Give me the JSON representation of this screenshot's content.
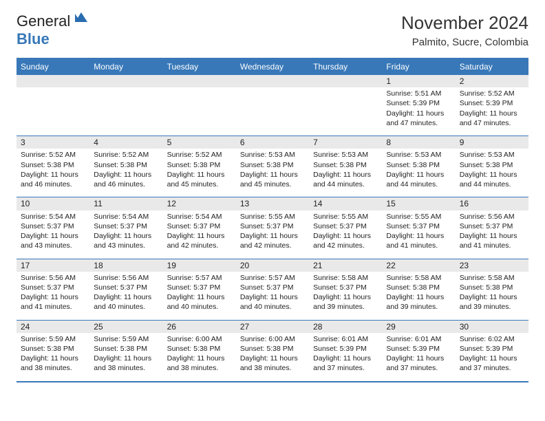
{
  "logo": {
    "part1": "General",
    "part2": "Blue"
  },
  "title": "November 2024",
  "location": "Palmito, Sucre, Colombia",
  "colors": {
    "header_bg": "#3878b8",
    "header_text": "#ffffff",
    "border": "#3878b8",
    "daybar_bg": "#e9e9ea",
    "text": "#222222",
    "logo_blue": "#3878b8"
  },
  "day_headers": [
    "Sunday",
    "Monday",
    "Tuesday",
    "Wednesday",
    "Thursday",
    "Friday",
    "Saturday"
  ],
  "weeks": [
    [
      null,
      null,
      null,
      null,
      null,
      {
        "n": "1",
        "sr": "Sunrise: 5:51 AM",
        "ss": "Sunset: 5:39 PM",
        "dl": "Daylight: 11 hours and 47 minutes."
      },
      {
        "n": "2",
        "sr": "Sunrise: 5:52 AM",
        "ss": "Sunset: 5:39 PM",
        "dl": "Daylight: 11 hours and 47 minutes."
      }
    ],
    [
      {
        "n": "3",
        "sr": "Sunrise: 5:52 AM",
        "ss": "Sunset: 5:38 PM",
        "dl": "Daylight: 11 hours and 46 minutes."
      },
      {
        "n": "4",
        "sr": "Sunrise: 5:52 AM",
        "ss": "Sunset: 5:38 PM",
        "dl": "Daylight: 11 hours and 46 minutes."
      },
      {
        "n": "5",
        "sr": "Sunrise: 5:52 AM",
        "ss": "Sunset: 5:38 PM",
        "dl": "Daylight: 11 hours and 45 minutes."
      },
      {
        "n": "6",
        "sr": "Sunrise: 5:53 AM",
        "ss": "Sunset: 5:38 PM",
        "dl": "Daylight: 11 hours and 45 minutes."
      },
      {
        "n": "7",
        "sr": "Sunrise: 5:53 AM",
        "ss": "Sunset: 5:38 PM",
        "dl": "Daylight: 11 hours and 44 minutes."
      },
      {
        "n": "8",
        "sr": "Sunrise: 5:53 AM",
        "ss": "Sunset: 5:38 PM",
        "dl": "Daylight: 11 hours and 44 minutes."
      },
      {
        "n": "9",
        "sr": "Sunrise: 5:53 AM",
        "ss": "Sunset: 5:38 PM",
        "dl": "Daylight: 11 hours and 44 minutes."
      }
    ],
    [
      {
        "n": "10",
        "sr": "Sunrise: 5:54 AM",
        "ss": "Sunset: 5:37 PM",
        "dl": "Daylight: 11 hours and 43 minutes."
      },
      {
        "n": "11",
        "sr": "Sunrise: 5:54 AM",
        "ss": "Sunset: 5:37 PM",
        "dl": "Daylight: 11 hours and 43 minutes."
      },
      {
        "n": "12",
        "sr": "Sunrise: 5:54 AM",
        "ss": "Sunset: 5:37 PM",
        "dl": "Daylight: 11 hours and 42 minutes."
      },
      {
        "n": "13",
        "sr": "Sunrise: 5:55 AM",
        "ss": "Sunset: 5:37 PM",
        "dl": "Daylight: 11 hours and 42 minutes."
      },
      {
        "n": "14",
        "sr": "Sunrise: 5:55 AM",
        "ss": "Sunset: 5:37 PM",
        "dl": "Daylight: 11 hours and 42 minutes."
      },
      {
        "n": "15",
        "sr": "Sunrise: 5:55 AM",
        "ss": "Sunset: 5:37 PM",
        "dl": "Daylight: 11 hours and 41 minutes."
      },
      {
        "n": "16",
        "sr": "Sunrise: 5:56 AM",
        "ss": "Sunset: 5:37 PM",
        "dl": "Daylight: 11 hours and 41 minutes."
      }
    ],
    [
      {
        "n": "17",
        "sr": "Sunrise: 5:56 AM",
        "ss": "Sunset: 5:37 PM",
        "dl": "Daylight: 11 hours and 41 minutes."
      },
      {
        "n": "18",
        "sr": "Sunrise: 5:56 AM",
        "ss": "Sunset: 5:37 PM",
        "dl": "Daylight: 11 hours and 40 minutes."
      },
      {
        "n": "19",
        "sr": "Sunrise: 5:57 AM",
        "ss": "Sunset: 5:37 PM",
        "dl": "Daylight: 11 hours and 40 minutes."
      },
      {
        "n": "20",
        "sr": "Sunrise: 5:57 AM",
        "ss": "Sunset: 5:37 PM",
        "dl": "Daylight: 11 hours and 40 minutes."
      },
      {
        "n": "21",
        "sr": "Sunrise: 5:58 AM",
        "ss": "Sunset: 5:37 PM",
        "dl": "Daylight: 11 hours and 39 minutes."
      },
      {
        "n": "22",
        "sr": "Sunrise: 5:58 AM",
        "ss": "Sunset: 5:38 PM",
        "dl": "Daylight: 11 hours and 39 minutes."
      },
      {
        "n": "23",
        "sr": "Sunrise: 5:58 AM",
        "ss": "Sunset: 5:38 PM",
        "dl": "Daylight: 11 hours and 39 minutes."
      }
    ],
    [
      {
        "n": "24",
        "sr": "Sunrise: 5:59 AM",
        "ss": "Sunset: 5:38 PM",
        "dl": "Daylight: 11 hours and 38 minutes."
      },
      {
        "n": "25",
        "sr": "Sunrise: 5:59 AM",
        "ss": "Sunset: 5:38 PM",
        "dl": "Daylight: 11 hours and 38 minutes."
      },
      {
        "n": "26",
        "sr": "Sunrise: 6:00 AM",
        "ss": "Sunset: 5:38 PM",
        "dl": "Daylight: 11 hours and 38 minutes."
      },
      {
        "n": "27",
        "sr": "Sunrise: 6:00 AM",
        "ss": "Sunset: 5:38 PM",
        "dl": "Daylight: 11 hours and 38 minutes."
      },
      {
        "n": "28",
        "sr": "Sunrise: 6:01 AM",
        "ss": "Sunset: 5:39 PM",
        "dl": "Daylight: 11 hours and 37 minutes."
      },
      {
        "n": "29",
        "sr": "Sunrise: 6:01 AM",
        "ss": "Sunset: 5:39 PM",
        "dl": "Daylight: 11 hours and 37 minutes."
      },
      {
        "n": "30",
        "sr": "Sunrise: 6:02 AM",
        "ss": "Sunset: 5:39 PM",
        "dl": "Daylight: 11 hours and 37 minutes."
      }
    ]
  ]
}
